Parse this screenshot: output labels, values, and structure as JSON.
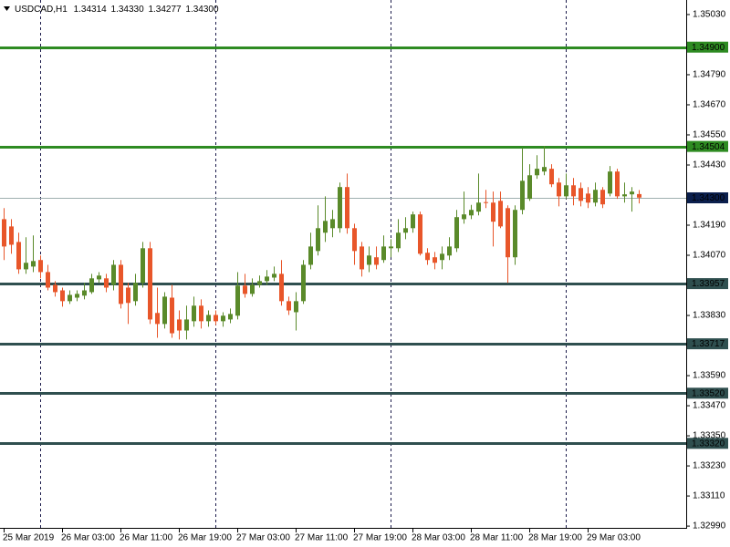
{
  "chart_data": {
    "type": "candlestick",
    "header": {
      "symbol": "USDCAD,H1",
      "value_labels": [
        "1.34314",
        "1.34330",
        "1.34277",
        "1.34300"
      ]
    },
    "categories": [
      "25 Mar 2019",
      null,
      null,
      null,
      null,
      null,
      null,
      null,
      "26 Mar 03:00",
      null,
      null,
      null,
      null,
      null,
      null,
      null,
      "26 Mar 11:00",
      null,
      null,
      null,
      null,
      null,
      null,
      null,
      "26 Mar 19:00",
      null,
      null,
      null,
      null,
      null,
      null,
      null,
      "27 Mar 03:00",
      null,
      null,
      null,
      null,
      null,
      null,
      null,
      "27 Mar 11:00",
      null,
      null,
      null,
      null,
      null,
      null,
      null,
      "27 Mar 19:00",
      null,
      null,
      null,
      null,
      null,
      null,
      null,
      "28 Mar 03:00",
      null,
      null,
      null,
      null,
      null,
      null,
      null,
      "28 Mar 11:00",
      null,
      null,
      null,
      null,
      null,
      null,
      null,
      "28 Mar 19:00",
      null,
      null,
      null,
      null,
      null,
      null,
      null,
      "29 Mar 03:00",
      null,
      null,
      null,
      null,
      null,
      null,
      null
    ],
    "open": [
      1.34214,
      1.34185,
      1.34123,
      1.34014,
      1.34025,
      1.34051,
      1.34003,
      1.33952,
      1.3393,
      1.33887,
      1.33901,
      1.33909,
      1.33923,
      1.33974,
      1.33978,
      1.33952,
      1.34032,
      1.33941,
      1.33887,
      1.3396,
      1.34098,
      1.3384,
      1.33796,
      1.33901,
      1.33814,
      1.3377,
      1.33807,
      1.33869,
      1.33807,
      1.33832,
      1.33807,
      1.33814,
      1.33829,
      1.33949,
      1.33916,
      1.33952,
      1.33967,
      1.33981,
      1.33996,
      1.33887,
      1.33843,
      1.33887,
      1.34032,
      1.34087,
      1.3416,
      1.34178,
      1.34178,
      1.34342,
      1.34178,
      1.34105,
      1.34032,
      1.34062,
      1.34051,
      1.34098,
      1.34098,
      1.3416,
      1.34178,
      1.34233,
      1.3408,
      1.34062,
      1.34051,
      1.34069,
      1.34098,
      1.34214,
      1.34229,
      1.34244,
      1.34282,
      1.3428,
      1.34287,
      1.34258,
      1.34062,
      1.34251,
      1.34295,
      1.34389,
      1.34404,
      1.34415,
      1.3436,
      1.34305,
      1.34349,
      1.34338,
      1.34316,
      1.3428,
      1.34331,
      1.34316,
      1.34404,
      1.34305,
      1.34313,
      1.34314
    ],
    "high": [
      1.34258,
      1.34214,
      1.3416,
      1.34142,
      1.34149,
      1.34069,
      1.34032,
      1.33967,
      1.33941,
      1.3393,
      1.3393,
      1.3396,
      1.33996,
      1.34003,
      1.33996,
      1.34051,
      1.34051,
      1.3396,
      1.33996,
      1.34123,
      1.34123,
      1.33941,
      1.33923,
      1.33952,
      1.3385,
      1.33869,
      1.33905,
      1.33894,
      1.3385,
      1.3385,
      1.33843,
      1.33858,
      1.34003,
      1.33996,
      1.33978,
      1.33989,
      1.34011,
      1.34025,
      1.34051,
      1.33905,
      1.33923,
      1.34051,
      1.3416,
      1.34269,
      1.34305,
      1.34251,
      1.3436,
      1.34396,
      1.34196,
      1.34123,
      1.34105,
      1.34105,
      1.34149,
      1.34134,
      1.34214,
      1.34222,
      1.34244,
      1.34244,
      1.34098,
      1.34083,
      1.34105,
      1.34142,
      1.34251,
      1.34324,
      1.34271,
      1.34396,
      1.34331,
      1.34324,
      1.34324,
      1.34269,
      1.34269,
      1.34498,
      1.34433,
      1.34469,
      1.34506,
      1.34433,
      1.34378,
      1.34396,
      1.34378,
      1.3436,
      1.34342,
      1.3436,
      1.34342,
      1.34426,
      1.34415,
      1.3436,
      1.34342,
      1.3433
    ],
    "low": [
      1.34051,
      1.34076,
      1.33996,
      1.33996,
      1.34003,
      1.33978,
      1.3393,
      1.33905,
      1.33865,
      1.33876,
      1.33887,
      1.33894,
      1.33916,
      1.3396,
      1.33923,
      1.3393,
      1.33858,
      1.33796,
      1.33869,
      1.33941,
      1.33796,
      1.33741,
      1.33778,
      1.33741,
      1.33734,
      1.33734,
      1.33785,
      1.33778,
      1.33785,
      1.33792,
      1.33785,
      1.33799,
      1.33814,
      1.33901,
      1.33905,
      1.33941,
      1.33952,
      1.33967,
      1.33869,
      1.33832,
      1.3377,
      1.33876,
      1.34014,
      1.34069,
      1.34123,
      1.34142,
      1.3416,
      1.34156,
      1.34032,
      1.33985,
      1.34003,
      1.34014,
      1.3404,
      1.34062,
      1.34083,
      1.34134,
      1.3416,
      1.34069,
      1.34032,
      1.34014,
      1.34014,
      1.34051,
      1.34083,
      1.34196,
      1.34214,
      1.34229,
      1.34258,
      1.34105,
      1.34178,
      1.3396,
      1.34032,
      1.34233,
      1.34287,
      1.34375,
      1.34389,
      1.34342,
      1.34265,
      1.34295,
      1.34269,
      1.34265,
      1.34258,
      1.34265,
      1.34258,
      1.34305,
      1.34295,
      1.3428,
      1.34244,
      1.34277
    ],
    "close": [
      1.34105,
      1.34112,
      1.34014,
      1.3404,
      1.34047,
      1.34003,
      1.33941,
      1.33923,
      1.33887,
      1.33912,
      1.33916,
      1.3393,
      1.33978,
      1.33989,
      1.33941,
      1.34032,
      1.33876,
      1.3388,
      1.3396,
      1.34098,
      1.33814,
      1.33796,
      1.33905,
      1.33759,
      1.3377,
      1.33814,
      1.33869,
      1.33807,
      1.33832,
      1.33807,
      1.33829,
      1.33836,
      1.33949,
      1.33916,
      1.33952,
      1.33967,
      1.33985,
      1.33996,
      1.33887,
      1.3385,
      1.33887,
      1.34032,
      1.34105,
      1.34178,
      1.34207,
      1.34214,
      1.34342,
      1.34178,
      1.34087,
      1.34014,
      1.34069,
      1.34032,
      1.34105,
      1.34105,
      1.3416,
      1.34178,
      1.34233,
      1.34076,
      1.34051,
      1.3404,
      1.34076,
      1.34105,
      1.34222,
      1.34233,
      1.34251,
      1.3428,
      1.3428,
      1.34204,
      1.34185,
      1.34062,
      1.34251,
      1.34367,
      1.34389,
      1.34415,
      1.34422,
      1.34353,
      1.34305,
      1.34349,
      1.34305,
      1.34287,
      1.3428,
      1.34331,
      1.34273,
      1.34404,
      1.34305,
      1.34313,
      1.34324,
      1.343
    ],
    "up_color": "#5a8a2a",
    "down_color": "#e8562a",
    "ylim": [
      1.32983,
      1.35088
    ],
    "yticks": [
      {
        "value": 1.3503,
        "label": "1.35030"
      },
      {
        "value": 1.3479,
        "label": "1.34790"
      },
      {
        "value": 1.3467,
        "label": "1.34670"
      },
      {
        "value": 1.3455,
        "label": "1.34550"
      },
      {
        "value": 1.3443,
        "label": "1.34430"
      },
      {
        "value": 1.3419,
        "label": "1.34190"
      },
      {
        "value": 1.3407,
        "label": "1.34070"
      },
      {
        "value": 1.3383,
        "label": "1.33830"
      },
      {
        "value": 1.3359,
        "label": "1.33590"
      },
      {
        "value": 1.3347,
        "label": "1.33470"
      },
      {
        "value": 1.3335,
        "label": "1.33350"
      },
      {
        "value": 1.3323,
        "label": "1.33230"
      },
      {
        "value": 1.3311,
        "label": "1.33110"
      },
      {
        "value": 1.3299,
        "label": "1.32990"
      }
    ],
    "levels": [
      {
        "value": 1.349,
        "label": "1.34900",
        "color": "#2e8b22"
      },
      {
        "value": 1.34504,
        "label": "1.34504",
        "color": "#2e8b22"
      },
      {
        "value": 1.33957,
        "label": "1.33957",
        "color": "#2f4f4f"
      },
      {
        "value": 1.33717,
        "label": "1.33717",
        "color": "#2f4f4f"
      },
      {
        "value": 1.3352,
        "label": "1.33520",
        "color": "#2f4f4f"
      },
      {
        "value": 1.3332,
        "label": "1.33320",
        "color": "#2f4f4f"
      }
    ],
    "current_price": {
      "value": 1.343,
      "label": "1.34300",
      "color": "#9fb0b0",
      "label_color": "#0b1f4d"
    }
  }
}
